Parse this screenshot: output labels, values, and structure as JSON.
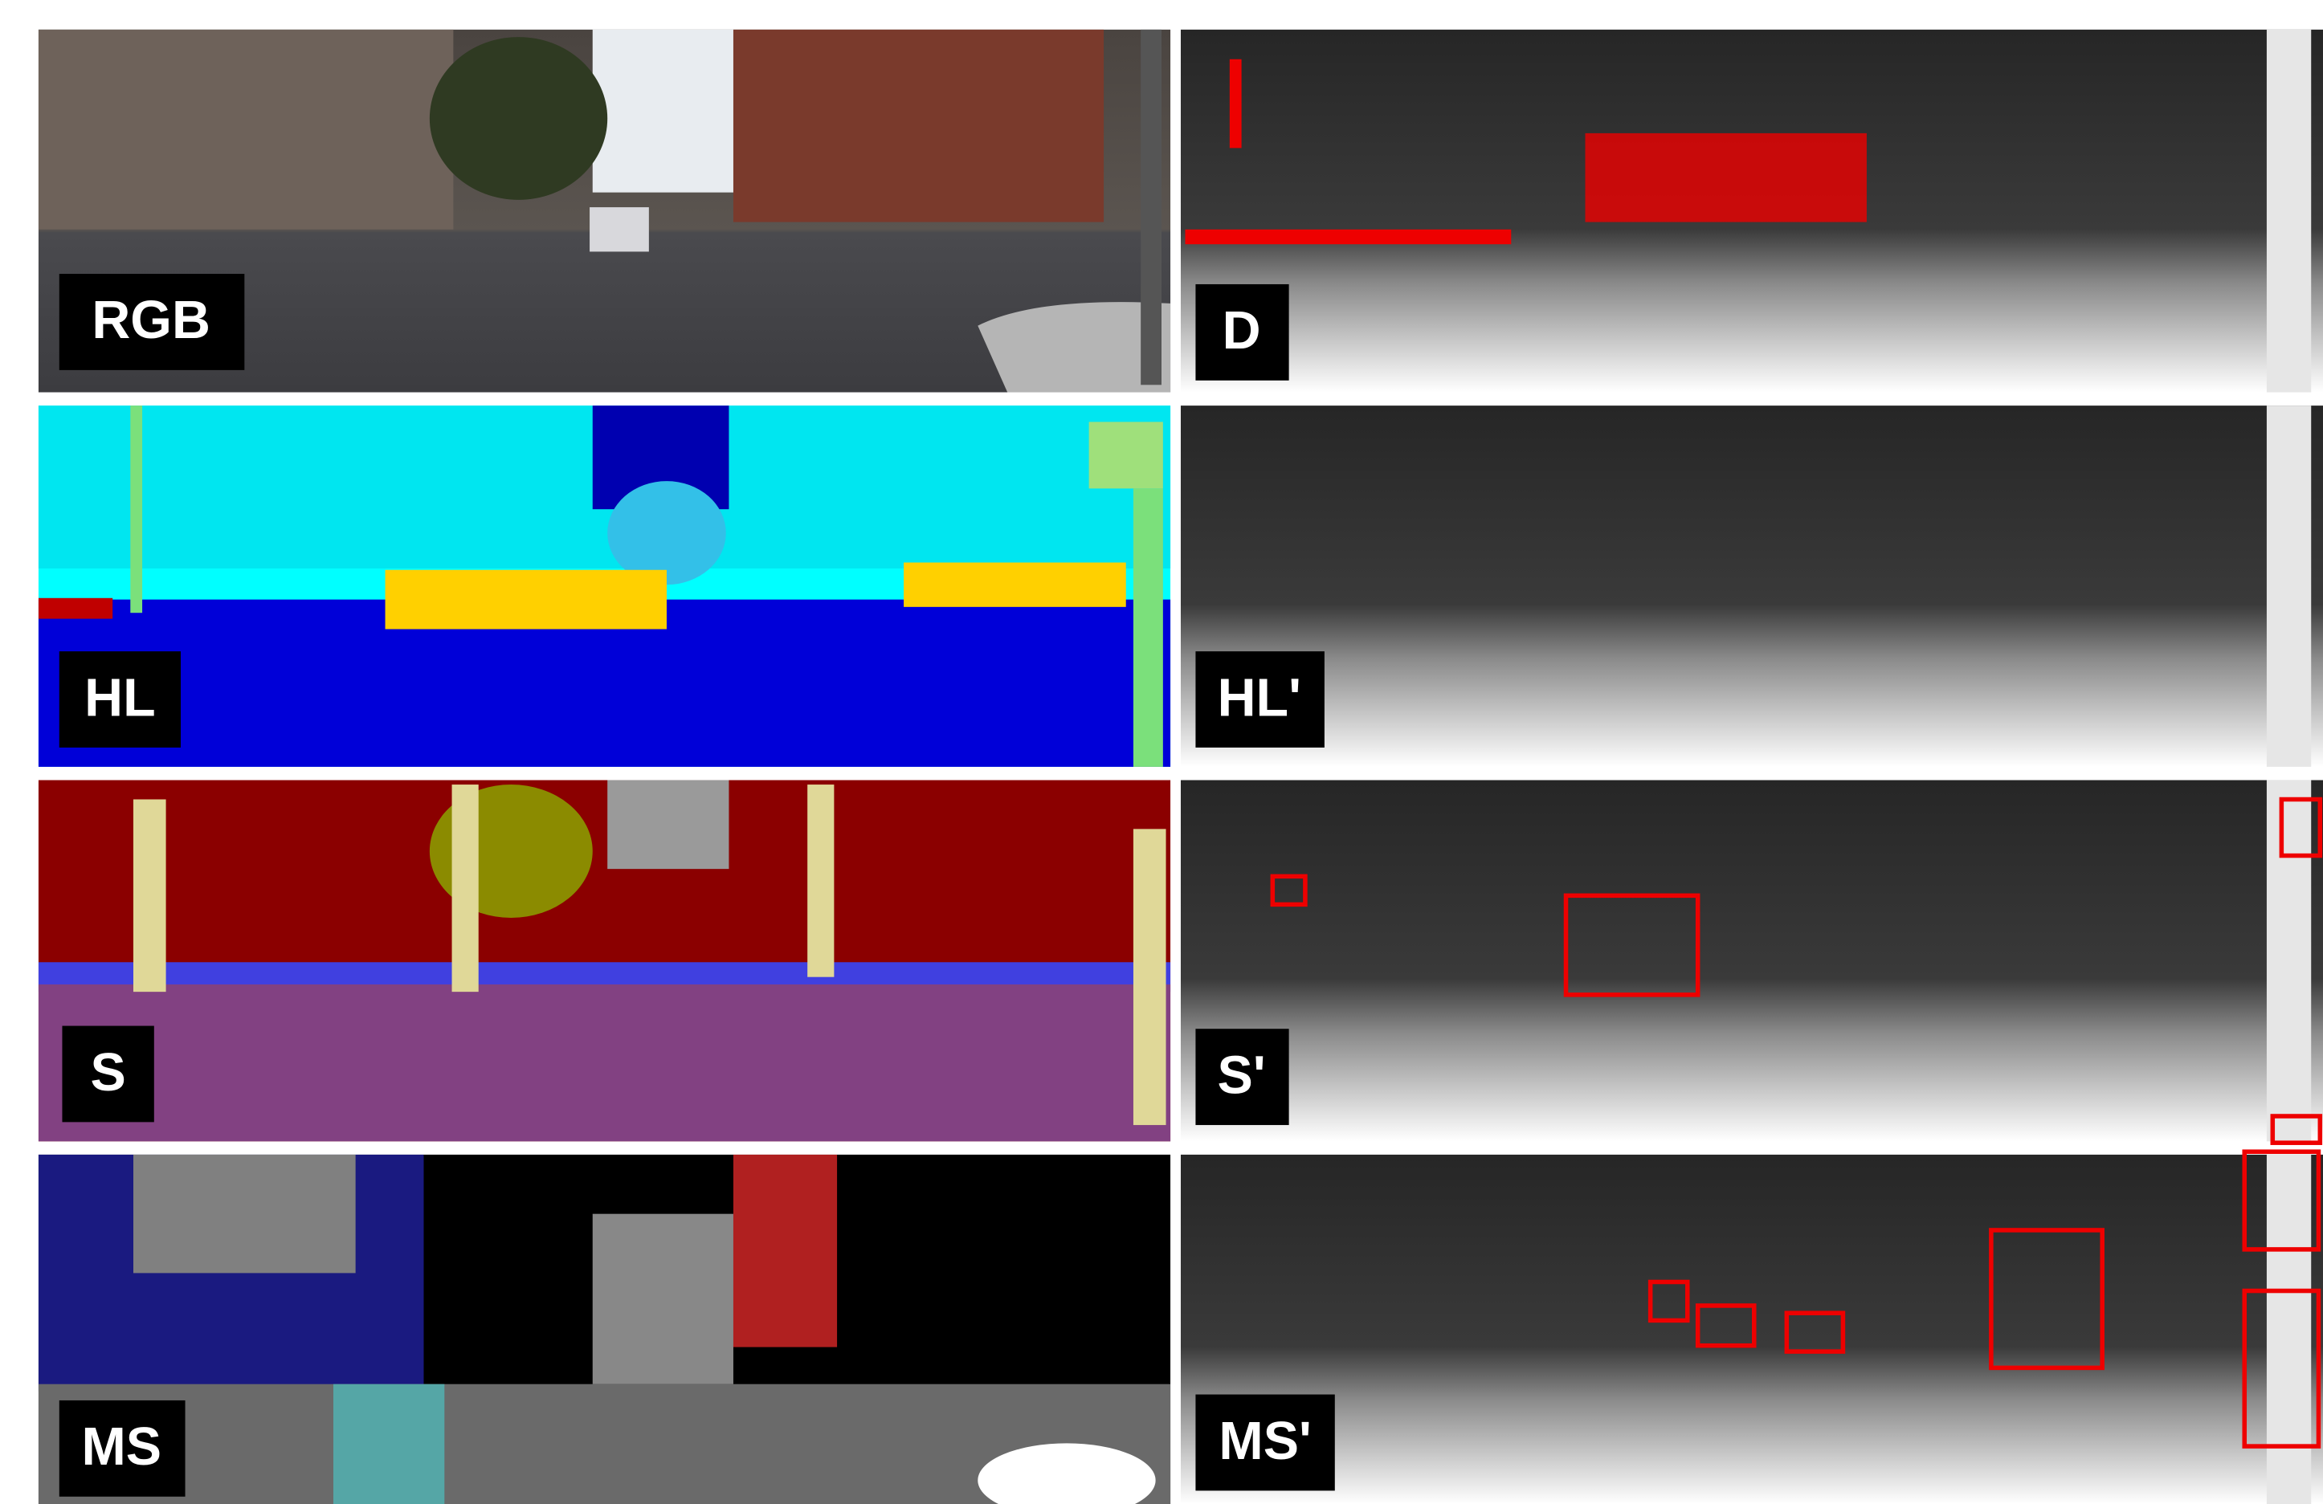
{
  "panels": [
    {
      "label": "RGB"
    },
    {
      "label": "D"
    },
    {
      "label": "HL"
    },
    {
      "label": "HL'"
    },
    {
      "label": "S"
    },
    {
      "label": "S'"
    },
    {
      "label": "MS"
    },
    {
      "label": "MS'"
    }
  ]
}
